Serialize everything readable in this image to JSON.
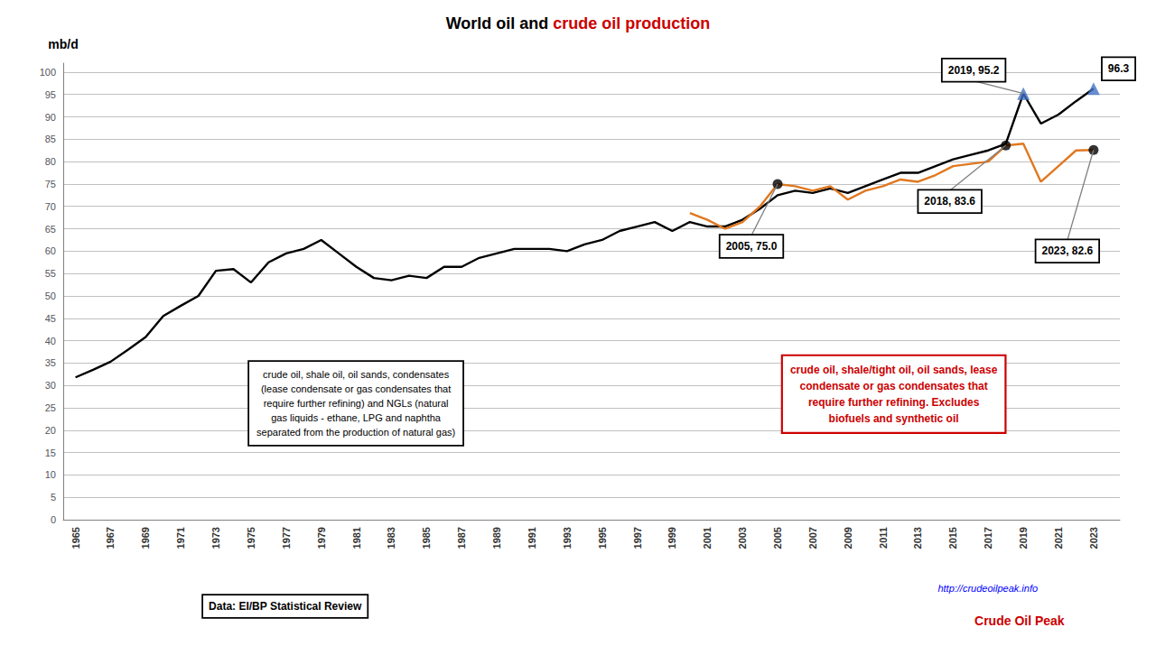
{
  "chart_data": {
    "type": "line",
    "title": [
      {
        "text": "World oil and ",
        "color": "#000000"
      },
      {
        "text": "crude oil production",
        "color": "#cc0000"
      }
    ],
    "ylabel": "mb/d",
    "xlim": [
      1964.3,
      2024.5
    ],
    "xticks": [
      1965,
      1967,
      1969,
      1971,
      1973,
      1975,
      1977,
      1979,
      1981,
      1983,
      1985,
      1987,
      1989,
      1991,
      1993,
      1995,
      1997,
      1999,
      2001,
      2003,
      2005,
      2007,
      2009,
      2011,
      2013,
      2015,
      2017,
      2019,
      2021,
      2023
    ],
    "ylim": [
      0,
      102
    ],
    "yticks": [
      0,
      5,
      10,
      15,
      20,
      25,
      30,
      35,
      40,
      45,
      50,
      55,
      60,
      65,
      70,
      75,
      80,
      85,
      90,
      95,
      100
    ],
    "grid": true,
    "series": [
      {
        "type": "line",
        "marker": "none",
        "color": "#000000",
        "x": [
          1965,
          1966,
          1967,
          1968,
          1969,
          1970,
          1971,
          1972,
          1973,
          1974,
          1975,
          1976,
          1977,
          1978,
          1979,
          1980,
          1981,
          1982,
          1983,
          1984,
          1985,
          1986,
          1987,
          1988,
          1989,
          1990,
          1991,
          1992,
          1993,
          1994,
          1995,
          1996,
          1997,
          1998,
          1999,
          2000,
          2001,
          2002,
          2003,
          2004,
          2005,
          2006,
          2007,
          2008,
          2009,
          2010,
          2011,
          2012,
          2013,
          2014,
          2015,
          2016,
          2017,
          2018,
          2019,
          2020,
          2021,
          2022,
          2023
        ],
        "values": [
          31.8,
          33.5,
          35.3,
          38.0,
          40.8,
          45.5,
          47.8,
          50.0,
          55.6,
          56.0,
          53.0,
          57.5,
          59.5,
          60.5,
          62.5,
          59.5,
          56.5,
          54.0,
          53.5,
          54.5,
          54.0,
          56.5,
          56.5,
          58.5,
          59.5,
          60.5,
          60.5,
          60.5,
          60.0,
          61.5,
          62.5,
          64.5,
          65.5,
          66.5,
          64.5,
          66.5,
          65.5,
          65.5,
          67.0,
          69.5,
          72.5,
          73.5,
          73.0,
          74.0,
          73.0,
          74.5,
          76.0,
          77.5,
          77.5,
          79.0,
          80.5,
          81.5,
          82.5,
          84.0,
          95.2,
          88.5,
          90.5,
          93.5,
          96.3
        ]
      },
      {
        "type": "line",
        "marker": "none",
        "color": "#e07820",
        "x": [
          2000,
          2001,
          2002,
          2003,
          2004,
          2005,
          2006,
          2007,
          2008,
          2009,
          2010,
          2011,
          2012,
          2013,
          2014,
          2015,
          2016,
          2017,
          2018,
          2019,
          2020,
          2021,
          2022,
          2023
        ],
        "values": [
          68.5,
          67.0,
          65.0,
          66.5,
          70.0,
          75.0,
          74.5,
          73.5,
          74.5,
          71.5,
          73.5,
          74.5,
          76.0,
          75.5,
          77.0,
          79.0,
          79.5,
          80.0,
          83.6,
          84.0,
          75.5,
          79.0,
          82.5,
          82.6
        ]
      },
      {
        "type": "scatter",
        "marker": "triangle",
        "color": "#4472c4",
        "x": [
          2019,
          2023
        ],
        "values": [
          95.2,
          96.3
        ]
      },
      {
        "type": "scatter",
        "marker": "circle",
        "color": "#000000",
        "x": [
          2005,
          2018,
          2023
        ],
        "values": [
          75.0,
          83.6,
          82.6
        ]
      }
    ],
    "annotations": [
      {
        "text": "2019, 95.2",
        "x": 2019,
        "y": 95.2,
        "color": "#000000"
      },
      {
        "text": "96.3",
        "x": 2023,
        "y": 96.3,
        "color": "#000000"
      },
      {
        "text": "2005, 75.0",
        "x": 2005,
        "y": 75.0,
        "color": "#000000"
      },
      {
        "text": "2018, 83.6",
        "x": 2018,
        "y": 83.6,
        "color": "#000000"
      },
      {
        "text": "2023, 82.6",
        "x": 2023,
        "y": 82.6,
        "color": "#000000"
      },
      {
        "text": "crude oil, shale oil, oil sands, condensates\n(lease condensate or gas condensates that\nrequire further refining) and NGLs (natural\ngas liquids - ethane, LPG and naphtha\nseparated from the production of natural gas)",
        "color": "#000000"
      },
      {
        "text": "crude oil, shale/tight oil, oil sands, lease\ncondensate or gas condensates that\nrequire further refining. Excludes\nbiofuels and synthetic oil",
        "color": "#cc0000"
      },
      {
        "text": "Data: EI/BP Statistical Review",
        "color": "#000000"
      },
      {
        "text": "http://crudeoilpeak.info",
        "color": "blue"
      },
      {
        "text": "Crude Oil Peak",
        "color": "#cc0000"
      }
    ]
  }
}
